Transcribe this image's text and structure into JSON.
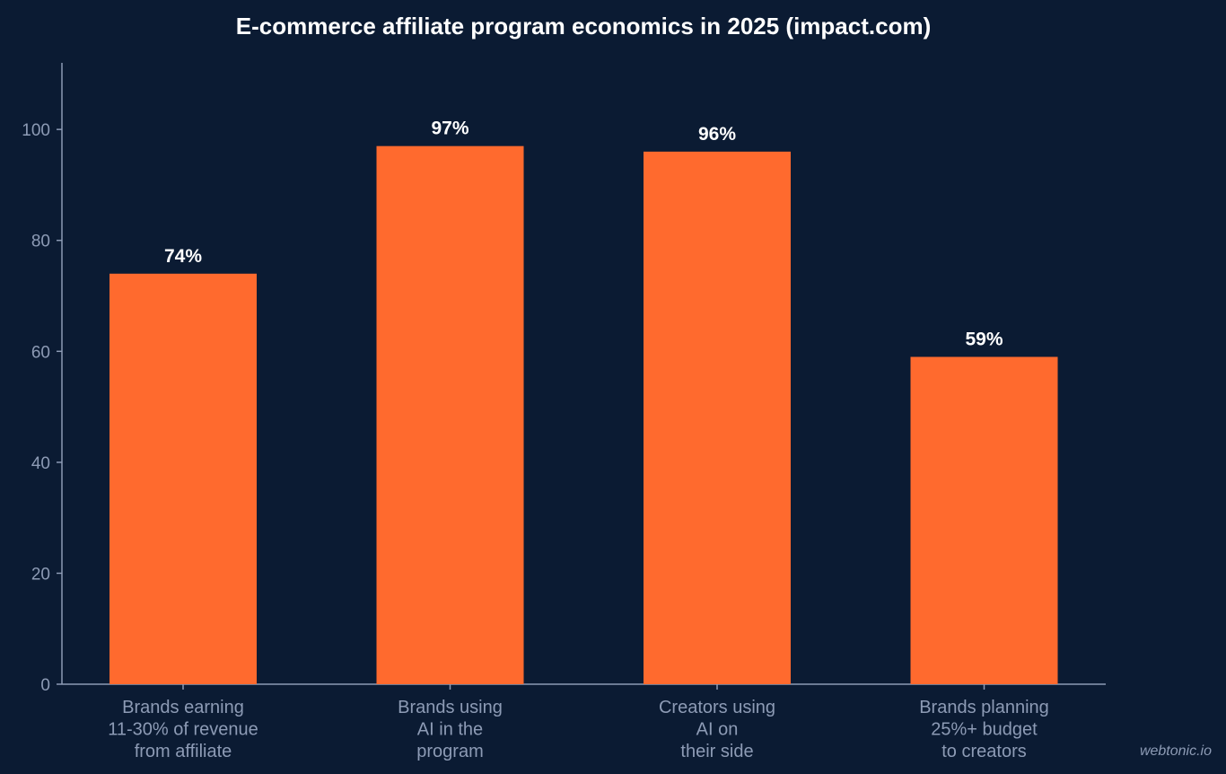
{
  "chart_data": {
    "type": "bar",
    "title": "E-commerce affiliate program economics in 2025 (impact.com)",
    "xlabel": "",
    "ylabel": "",
    "categories": [
      [
        "Brands earning",
        "11-30% of revenue",
        "from affiliate"
      ],
      [
        "Brands using",
        "AI in the",
        "program"
      ],
      [
        "Creators using",
        "AI on",
        "their side"
      ],
      [
        "Brands planning",
        "25%+ budget",
        "to creators"
      ]
    ],
    "values": [
      74,
      97,
      96,
      59
    ],
    "value_labels": [
      "74%",
      "97%",
      "96%",
      "59%"
    ],
    "y_ticks": [
      0,
      20,
      40,
      60,
      80,
      100
    ],
    "ylim": [
      0,
      112
    ],
    "grid": false,
    "bar_color": "#ff6a2e",
    "background_color": "#0b1b33"
  },
  "watermark": "webtonic.io"
}
